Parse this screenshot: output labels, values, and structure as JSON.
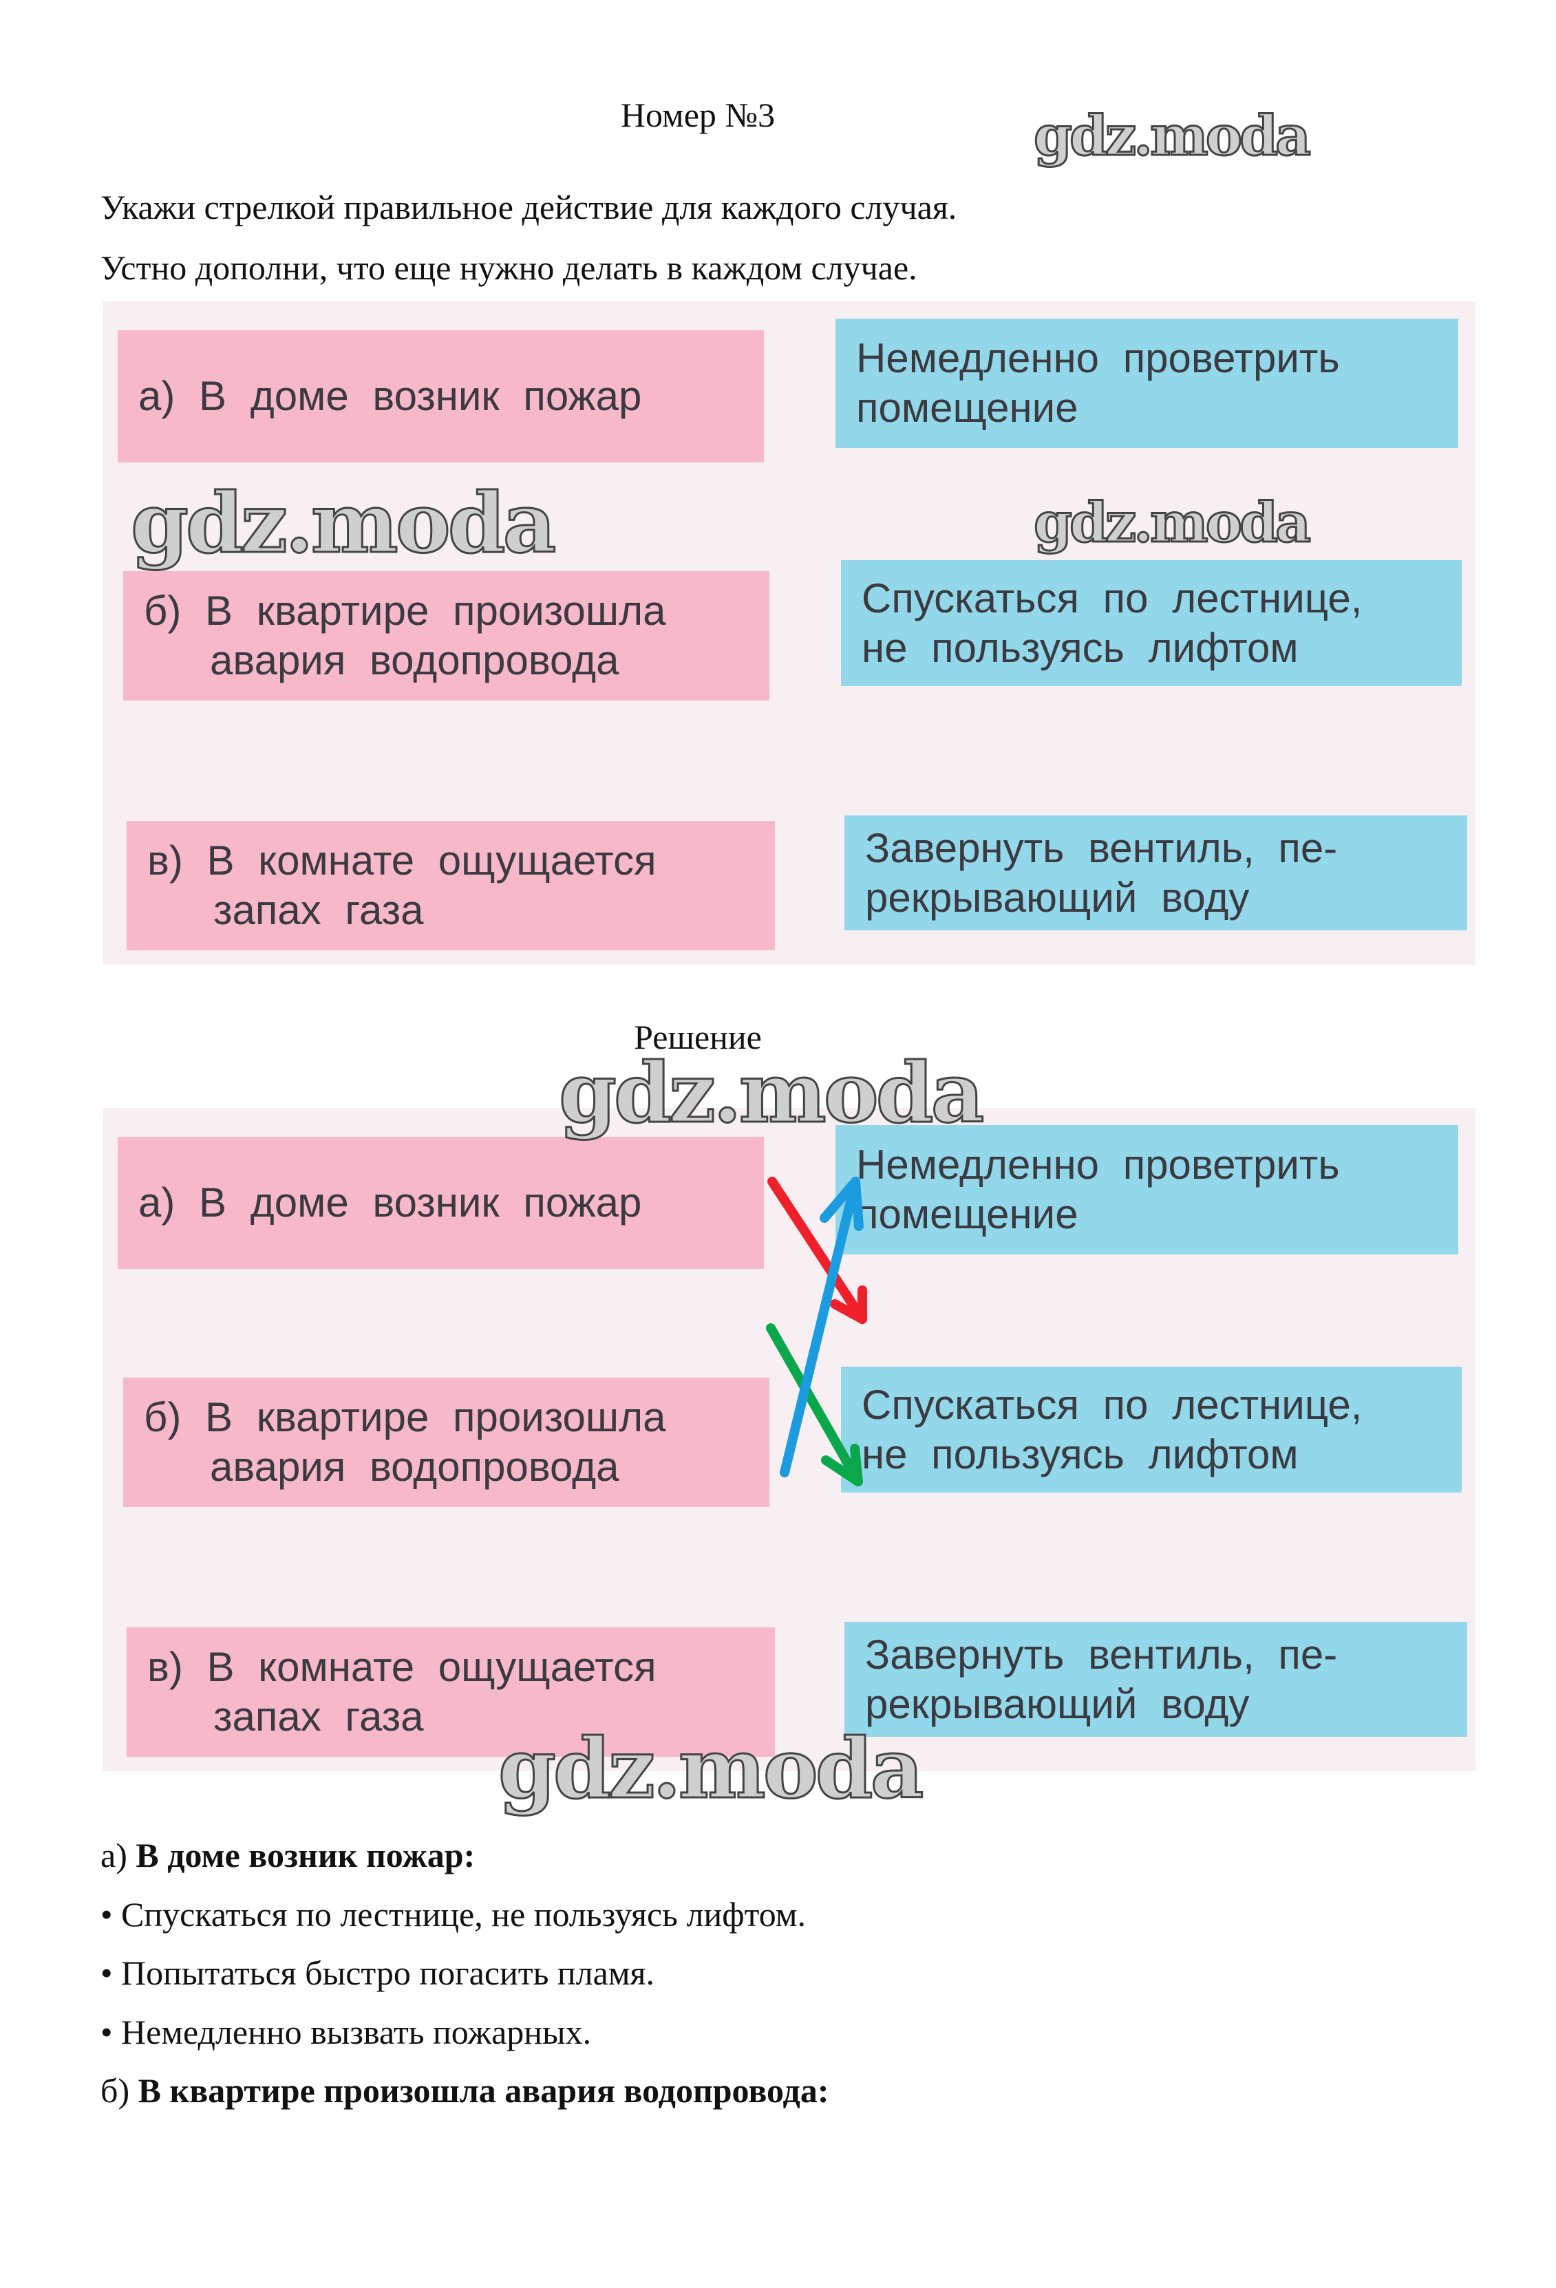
{
  "header": {
    "title": "Номер №3"
  },
  "task": {
    "line1": "Укажи стрелкой правильное действие для каждого случая.",
    "line2": "Устно дополни, что еще нужно делать в каждом случае."
  },
  "exercise": {
    "situations": [
      {
        "line1": "а) В доме возник пожар",
        "line2": ""
      },
      {
        "line1": "б) В квартире произошла",
        "line2": "авария водопровода"
      },
      {
        "line1": "в) В комнате ощущается",
        "line2": "запах газа"
      }
    ],
    "actions": [
      {
        "line1": "Немедленно проветрить",
        "line2": "помещение"
      },
      {
        "line1": "Спускаться по лестнице,",
        "line2": "не пользуясь лифтом"
      },
      {
        "line1": "Завернуть вентиль, пе-",
        "line2": "рекрывающий воду"
      }
    ]
  },
  "solution": {
    "heading": "Решение",
    "arrows": [
      {
        "from": "а",
        "to": "Спускаться по лестнице",
        "color": "#f0202a"
      },
      {
        "from": "б",
        "to": "Завернуть вентиль",
        "color": "#0aa84a"
      },
      {
        "from": "в",
        "to": "Немедленно проветрить",
        "color": "#1b9be0"
      }
    ],
    "answer_a_prefix": "а) ",
    "answer_a_title": "В доме возник пожар:",
    "answer_a_items": [
      "• Спускаться по лестнице, не пользуясь лифтом.",
      "• Попытаться быстро погасить пламя.",
      "• Немедленно вызвать пожарных."
    ],
    "answer_b_prefix": "б) ",
    "answer_b_title": "В квартире произошла авария водопровода:"
  },
  "watermark": "gdz.moda",
  "colors": {
    "pink": "#f7b8c9",
    "blue": "#93d8ea"
  }
}
